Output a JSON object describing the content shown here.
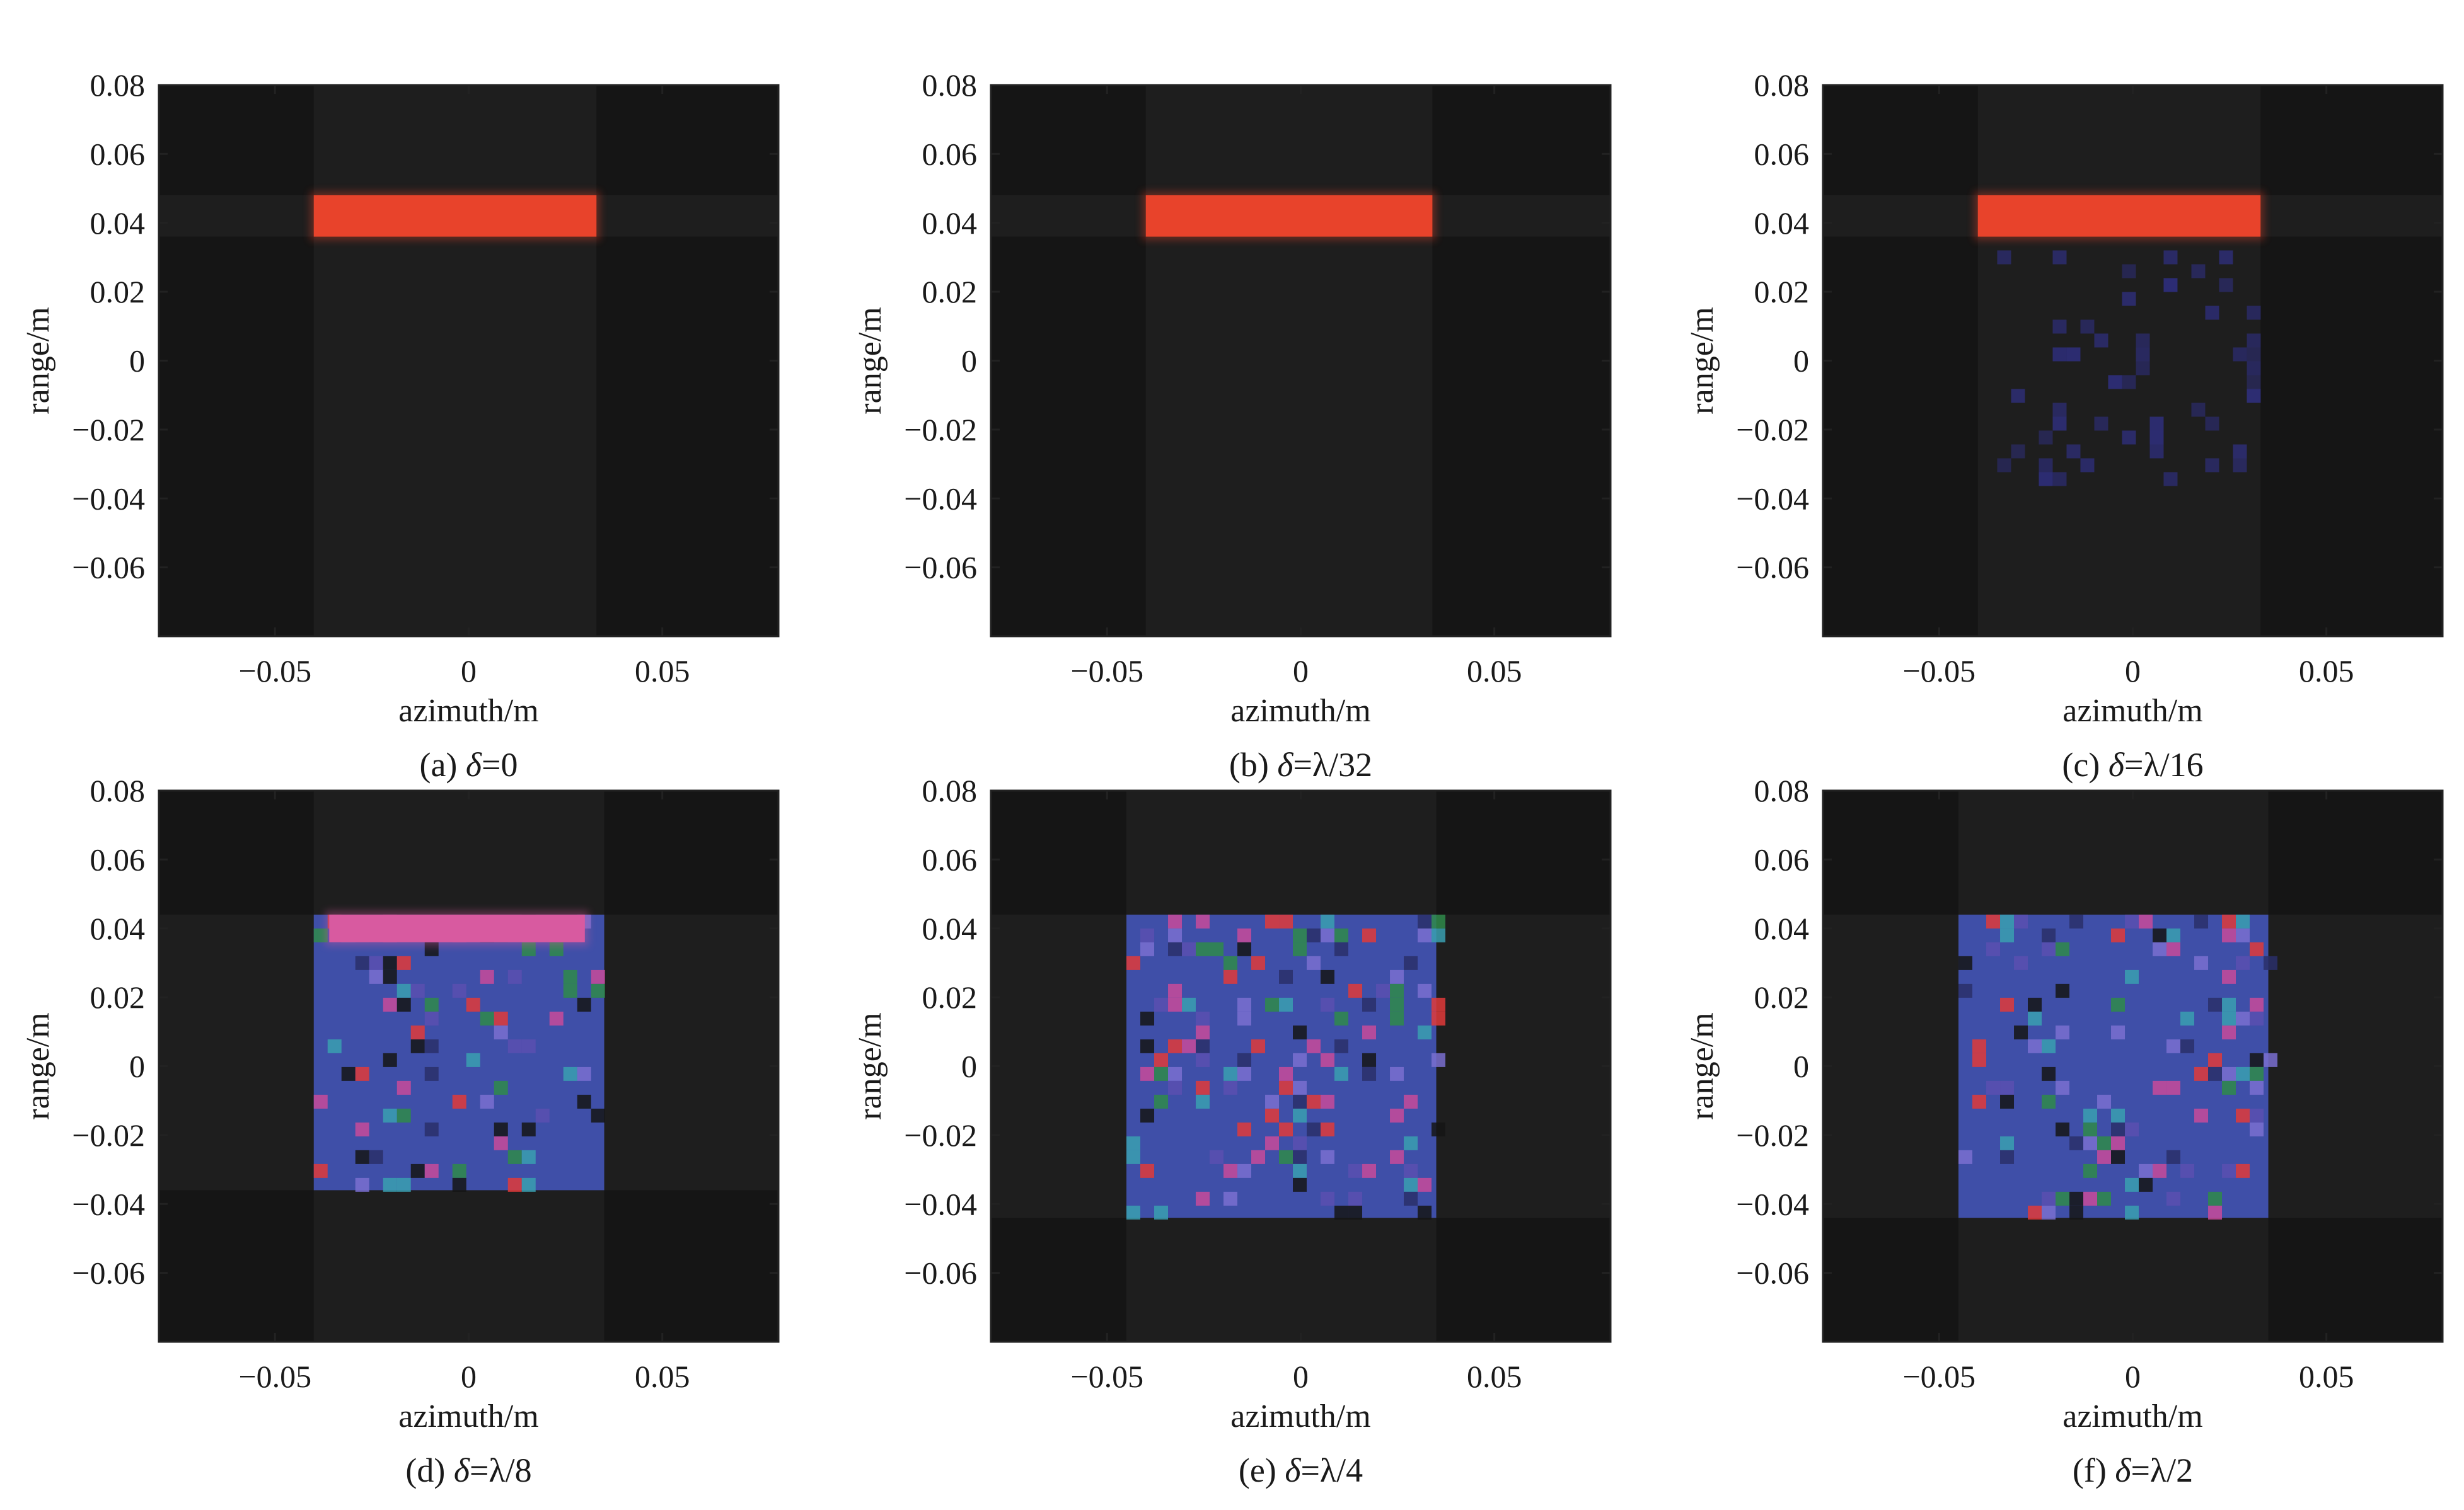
{
  "figure": {
    "background_color": "#ffffff",
    "plot_background_color": "#151515"
  },
  "chart_data": [
    {
      "type": "heatmap",
      "panel": "a",
      "caption": {
        "prefix": "(a) ",
        "symbol": "δ",
        "equals": "=",
        "value": "0"
      },
      "xlabel": "azimuth/m",
      "ylabel": "range/m",
      "xlim": [
        -0.08,
        0.08
      ],
      "ylim": [
        -0.08,
        0.08
      ],
      "xticks": [
        -0.05,
        0,
        0.05
      ],
      "xtick_labels": [
        "−0.05",
        "0",
        "0.05"
      ],
      "yticks": [
        0.08,
        0.06,
        0.04,
        0.02,
        0,
        -0.02,
        -0.04,
        -0.06
      ],
      "ytick_labels": [
        "0.08",
        "0.06",
        "0.04",
        "0.02",
        "0",
        "−0.02",
        "−0.04",
        "−0.06"
      ],
      "regions": [
        {
          "kind": "bar",
          "color": "#e8432b",
          "x": [
            -0.04,
            0.033
          ],
          "y": [
            0.036,
            0.048
          ]
        }
      ]
    },
    {
      "type": "heatmap",
      "panel": "b",
      "caption": {
        "prefix": "(b) ",
        "symbol": "δ",
        "equals": "=",
        "value": "λ/32"
      },
      "xlabel": "azimuth/m",
      "ylabel": "range/m",
      "xlim": [
        -0.08,
        0.08
      ],
      "ylim": [
        -0.08,
        0.08
      ],
      "xticks": [
        -0.05,
        0,
        0.05
      ],
      "xtick_labels": [
        "−0.05",
        "0",
        "0.05"
      ],
      "yticks": [
        0.08,
        0.06,
        0.04,
        0.02,
        0,
        -0.02,
        -0.04,
        -0.06
      ],
      "ytick_labels": [
        "0.08",
        "0.06",
        "0.04",
        "0.02",
        "0",
        "−0.02",
        "−0.04",
        "−0.06"
      ],
      "regions": [
        {
          "kind": "bar",
          "color": "#e8432b",
          "x": [
            -0.04,
            0.034
          ],
          "y": [
            0.036,
            0.048
          ]
        }
      ]
    },
    {
      "type": "heatmap",
      "panel": "c",
      "caption": {
        "prefix": "(c) ",
        "symbol": "δ",
        "equals": "=",
        "value": "λ/16"
      },
      "xlabel": "azimuth/m",
      "ylabel": "range/m",
      "xlim": [
        -0.08,
        0.08
      ],
      "ylim": [
        -0.08,
        0.08
      ],
      "xticks": [
        -0.05,
        0,
        0.05
      ],
      "xtick_labels": [
        "−0.05",
        "0",
        "0.05"
      ],
      "yticks": [
        0.08,
        0.06,
        0.04,
        0.02,
        0,
        -0.02,
        -0.04,
        -0.06
      ],
      "ytick_labels": [
        "0.08",
        "0.06",
        "0.04",
        "0.02",
        "0",
        "−0.02",
        "−0.04",
        "−0.06"
      ],
      "regions": [
        {
          "kind": "bar",
          "color": "#e8432b",
          "x": [
            -0.04,
            0.033
          ],
          "y": [
            0.036,
            0.048
          ]
        },
        {
          "kind": "speckle",
          "color": "#2f2f80",
          "x": [
            -0.035,
            0.03
          ],
          "y": [
            -0.035,
            0.032
          ]
        }
      ]
    },
    {
      "type": "heatmap",
      "panel": "d",
      "caption": {
        "prefix": "(d) ",
        "symbol": "δ",
        "equals": "=",
        "value": "λ/8"
      },
      "xlabel": "azimuth/m",
      "ylabel": "range/m",
      "xlim": [
        -0.08,
        0.08
      ],
      "ylim": [
        -0.08,
        0.08
      ],
      "xticks": [
        -0.05,
        0,
        0.05
      ],
      "xtick_labels": [
        "−0.05",
        "0",
        "0.05"
      ],
      "yticks": [
        0.08,
        0.06,
        0.04,
        0.02,
        0,
        -0.02,
        -0.04,
        -0.06
      ],
      "ytick_labels": [
        "0.08",
        "0.06",
        "0.04",
        "0.02",
        "0",
        "−0.02",
        "−0.04",
        "−0.06"
      ],
      "regions": [
        {
          "kind": "block",
          "color": "#3f4fa8",
          "x": [
            -0.04,
            0.035
          ],
          "y": [
            -0.036,
            0.044
          ]
        },
        {
          "kind": "bar",
          "color": "#d85aa0",
          "x": [
            -0.036,
            0.03
          ],
          "y": [
            0.036,
            0.044
          ]
        }
      ]
    },
    {
      "type": "heatmap",
      "panel": "e",
      "caption": {
        "prefix": "(e) ",
        "symbol": "δ",
        "equals": "=",
        "value": "λ/4"
      },
      "xlabel": "azimuth/m",
      "ylabel": "range/m",
      "xlim": [
        -0.08,
        0.08
      ],
      "ylim": [
        -0.08,
        0.08
      ],
      "xticks": [
        -0.05,
        0,
        0.05
      ],
      "xtick_labels": [
        "−0.05",
        "0",
        "0.05"
      ],
      "yticks": [
        0.08,
        0.06,
        0.04,
        0.02,
        0,
        -0.02,
        -0.04,
        -0.06
      ],
      "ytick_labels": [
        "0.08",
        "0.06",
        "0.04",
        "0.02",
        "0",
        "−0.02",
        "−0.04",
        "−0.06"
      ],
      "regions": [
        {
          "kind": "block",
          "color": "#3f4fa8",
          "x": [
            -0.045,
            0.035
          ],
          "y": [
            -0.044,
            0.044
          ]
        }
      ]
    },
    {
      "type": "heatmap",
      "panel": "f",
      "caption": {
        "prefix": "(f) ",
        "symbol": "δ",
        "equals": "=",
        "value": "λ/2"
      },
      "xlabel": "azimuth/m",
      "ylabel": "range/m",
      "xlim": [
        -0.08,
        0.08
      ],
      "ylim": [
        -0.08,
        0.08
      ],
      "xticks": [
        -0.05,
        0,
        0.05
      ],
      "xtick_labels": [
        "−0.05",
        "0",
        "0.05"
      ],
      "yticks": [
        0.08,
        0.06,
        0.04,
        0.02,
        0,
        -0.02,
        -0.04,
        -0.06
      ],
      "ytick_labels": [
        "0.08",
        "0.06",
        "0.04",
        "0.02",
        "0",
        "−0.02",
        "−0.04",
        "−0.06"
      ],
      "regions": [
        {
          "kind": "block",
          "color": "#3f4fa8",
          "x": [
            -0.045,
            0.035
          ],
          "y": [
            -0.044,
            0.044
          ]
        }
      ]
    }
  ]
}
